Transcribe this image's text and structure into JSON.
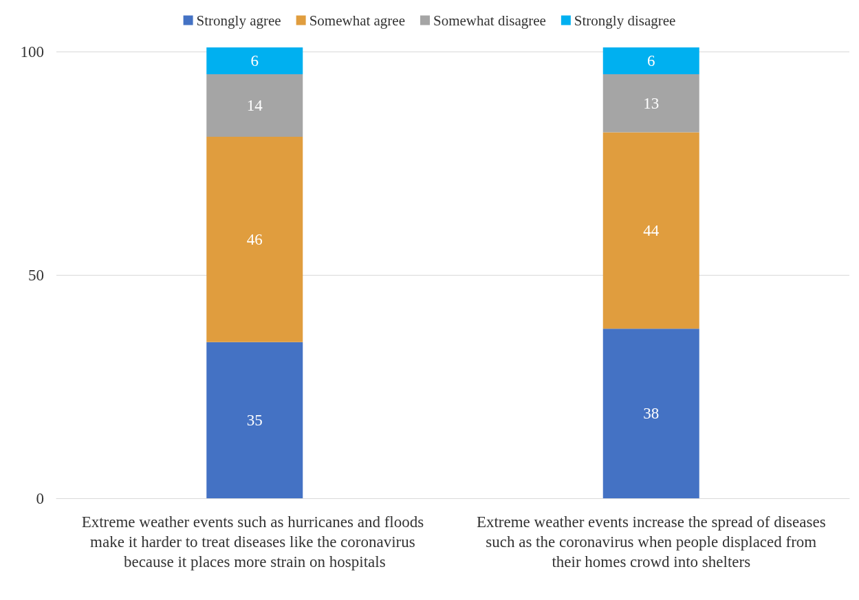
{
  "chart_data": {
    "type": "bar",
    "stacked": true,
    "categories": [
      "Extreme weather events such as hurricanes and floods make it harder to treat diseases like the coronavirus because it places more strain on hospitals",
      "Extreme weather events increase the spread of diseases such as the coronavirus when people displaced from their homes crowd into shelters"
    ],
    "series": [
      {
        "name": "Strongly agree",
        "color": "#4472c4",
        "values": [
          35,
          38
        ]
      },
      {
        "name": "Somewhat agree",
        "color": "#e09d3e",
        "values": [
          46,
          44
        ]
      },
      {
        "name": "Somewhat disagree",
        "color": "#a5a5a5",
        "values": [
          14,
          13
        ]
      },
      {
        "name": "Strongly disagree",
        "color": "#00b0f0",
        "values": [
          6,
          6
        ]
      }
    ],
    "ylim": [
      0,
      101
    ],
    "yticks": [
      0,
      50,
      100
    ],
    "grid": "y",
    "legend": "top",
    "data_labels": true
  }
}
